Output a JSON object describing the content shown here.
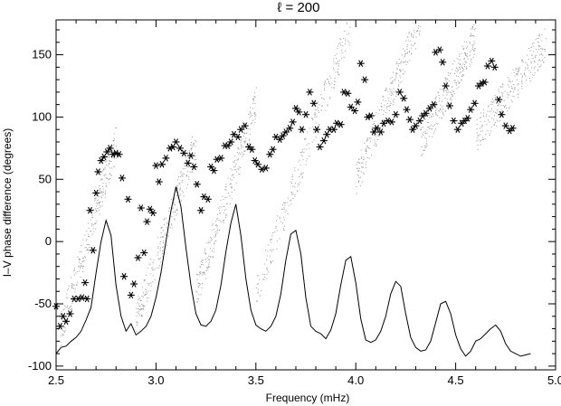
{
  "chart_data": {
    "type": "scatter",
    "title": "ℓ = 200",
    "xlabel": "Frequency (mHz)",
    "ylabel": "I–V phase difference (degrees)",
    "xlim": [
      2.5,
      5.0
    ],
    "ylim": [
      -103,
      178
    ],
    "x_ticks": [
      "2.5",
      "3.0",
      "3.5",
      "4.0",
      "4.5",
      "5.0"
    ],
    "y_ticks": [
      "-100",
      "-50",
      "0",
      "50",
      "100",
      "150"
    ],
    "grid": false,
    "legend": "none",
    "colors": {
      "asterisks": "#000000",
      "dots": "#9a9a9a",
      "line": "#000000"
    },
    "series": [
      {
        "style": "asterisk",
        "points": [
          [
            2.5,
            -52
          ],
          [
            2.52,
            -68
          ],
          [
            2.535,
            -60
          ],
          [
            2.55,
            -64
          ],
          [
            2.57,
            -58
          ],
          [
            2.59,
            -46
          ],
          [
            2.61,
            -46
          ],
          [
            2.63,
            -45
          ],
          [
            2.645,
            -33
          ],
          [
            2.655,
            -46
          ],
          [
            2.67,
            25
          ],
          [
            2.685,
            -7
          ],
          [
            2.7,
            39
          ],
          [
            2.71,
            56
          ],
          [
            2.725,
            65
          ],
          [
            2.74,
            68
          ],
          [
            2.755,
            72
          ],
          [
            2.77,
            75
          ],
          [
            2.785,
            70
          ],
          [
            2.8,
            71
          ],
          [
            2.815,
            70
          ],
          [
            2.83,
            51
          ],
          [
            2.84,
            -28
          ],
          [
            2.86,
            34
          ],
          [
            2.875,
            -43
          ],
          [
            2.89,
            -34
          ],
          [
            2.91,
            -13
          ],
          [
            2.925,
            27
          ],
          [
            2.94,
            -9
          ],
          [
            2.955,
            16
          ],
          [
            2.97,
            26
          ],
          [
            2.985,
            23
          ],
          [
            3.0,
            61
          ],
          [
            3.015,
            48
          ],
          [
            3.03,
            62
          ],
          [
            3.05,
            67
          ],
          [
            3.07,
            75
          ],
          [
            3.085,
            76
          ],
          [
            3.1,
            80
          ],
          [
            3.12,
            75
          ],
          [
            3.14,
            71
          ],
          [
            3.16,
            63
          ],
          [
            3.175,
            69
          ],
          [
            3.19,
            60
          ],
          [
            3.205,
            46
          ],
          [
            3.225,
            25
          ],
          [
            3.24,
            36
          ],
          [
            3.26,
            34
          ],
          [
            3.275,
            60
          ],
          [
            3.29,
            57
          ],
          [
            3.305,
            66
          ],
          [
            3.325,
            67
          ],
          [
            3.345,
            77
          ],
          [
            3.36,
            77
          ],
          [
            3.375,
            80
          ],
          [
            3.39,
            86
          ],
          [
            3.41,
            84
          ],
          [
            3.425,
            90
          ],
          [
            3.445,
            93
          ],
          [
            3.465,
            76
          ],
          [
            3.48,
            74
          ],
          [
            3.495,
            65
          ],
          [
            3.51,
            62
          ],
          [
            3.53,
            58
          ],
          [
            3.55,
            59
          ],
          [
            3.57,
            70
          ],
          [
            3.585,
            74
          ],
          [
            3.6,
            84
          ],
          [
            3.62,
            82
          ],
          [
            3.635,
            85
          ],
          [
            3.65,
            88
          ],
          [
            3.67,
            91
          ],
          [
            3.685,
            96
          ],
          [
            3.7,
            107
          ],
          [
            3.715,
            104
          ],
          [
            3.73,
            90
          ],
          [
            3.75,
            102
          ],
          [
            3.77,
            120
          ],
          [
            3.79,
            111
          ],
          [
            3.805,
            90
          ],
          [
            3.82,
            76
          ],
          [
            3.84,
            81
          ],
          [
            3.855,
            86
          ],
          [
            3.87,
            90
          ],
          [
            3.89,
            90
          ],
          [
            3.905,
            95
          ],
          [
            3.925,
            94
          ],
          [
            3.94,
            120
          ],
          [
            3.96,
            119
          ],
          [
            3.975,
            108
          ],
          [
            3.995,
            105
          ],
          [
            4.01,
            112
          ],
          [
            4.025,
            143
          ],
          [
            4.045,
            130
          ],
          [
            4.06,
            100
          ],
          [
            4.075,
            101
          ],
          [
            4.09,
            88
          ],
          [
            4.105,
            91
          ],
          [
            4.125,
            88
          ],
          [
            4.14,
            95
          ],
          [
            4.16,
            97
          ],
          [
            4.18,
            96
          ],
          [
            4.2,
            102
          ],
          [
            4.22,
            120
          ],
          [
            4.24,
            115
          ],
          [
            4.255,
            106
          ],
          [
            4.27,
            98
          ],
          [
            4.285,
            90
          ],
          [
            4.3,
            93
          ],
          [
            4.32,
            97
          ],
          [
            4.335,
            101
          ],
          [
            4.35,
            103
          ],
          [
            4.37,
            107
          ],
          [
            4.39,
            110
          ],
          [
            4.4,
            152
          ],
          [
            4.42,
            154
          ],
          [
            4.435,
            144
          ],
          [
            4.45,
            125
          ],
          [
            4.47,
            109
          ],
          [
            4.49,
            97
          ],
          [
            4.51,
            90
          ],
          [
            4.53,
            95
          ],
          [
            4.545,
            97
          ],
          [
            4.56,
            99
          ],
          [
            4.575,
            106
          ],
          [
            4.595,
            111
          ],
          [
            4.615,
            125
          ],
          [
            4.63,
            127
          ],
          [
            4.645,
            128
          ],
          [
            4.66,
            141
          ],
          [
            4.68,
            145
          ],
          [
            4.695,
            140
          ],
          [
            4.715,
            114
          ],
          [
            4.73,
            102
          ],
          [
            4.75,
            93
          ],
          [
            4.77,
            89
          ],
          [
            4.785,
            91
          ]
        ]
      },
      {
        "style": "line",
        "points": [
          [
            2.5,
            -90
          ],
          [
            2.525,
            -85
          ],
          [
            2.55,
            -84
          ],
          [
            2.575,
            -80
          ],
          [
            2.6,
            -77
          ],
          [
            2.625,
            -72
          ],
          [
            2.65,
            -63
          ],
          [
            2.675,
            -53
          ],
          [
            2.7,
            -25
          ],
          [
            2.725,
            0
          ],
          [
            2.75,
            17
          ],
          [
            2.775,
            5
          ],
          [
            2.8,
            -35
          ],
          [
            2.825,
            -60
          ],
          [
            2.85,
            -72
          ],
          [
            2.875,
            -66
          ],
          [
            2.9,
            -75
          ],
          [
            2.925,
            -72
          ],
          [
            2.95,
            -68
          ],
          [
            2.975,
            -60
          ],
          [
            3.0,
            -45
          ],
          [
            3.025,
            -25
          ],
          [
            3.05,
            0
          ],
          [
            3.075,
            25
          ],
          [
            3.1,
            44
          ],
          [
            3.125,
            28
          ],
          [
            3.15,
            -5
          ],
          [
            3.175,
            -35
          ],
          [
            3.2,
            -58
          ],
          [
            3.225,
            -67
          ],
          [
            3.25,
            -68
          ],
          [
            3.275,
            -64
          ],
          [
            3.3,
            -55
          ],
          [
            3.325,
            -35
          ],
          [
            3.35,
            -8
          ],
          [
            3.375,
            15
          ],
          [
            3.4,
            30
          ],
          [
            3.425,
            5
          ],
          [
            3.45,
            -30
          ],
          [
            3.475,
            -55
          ],
          [
            3.5,
            -67
          ],
          [
            3.525,
            -70
          ],
          [
            3.55,
            -72
          ],
          [
            3.575,
            -68
          ],
          [
            3.6,
            -60
          ],
          [
            3.625,
            -42
          ],
          [
            3.65,
            -15
          ],
          [
            3.675,
            6
          ],
          [
            3.7,
            9
          ],
          [
            3.725,
            -10
          ],
          [
            3.75,
            -45
          ],
          [
            3.775,
            -68
          ],
          [
            3.8,
            -72
          ],
          [
            3.825,
            -74
          ],
          [
            3.85,
            -78
          ],
          [
            3.875,
            -71
          ],
          [
            3.9,
            -58
          ],
          [
            3.925,
            -35
          ],
          [
            3.95,
            -15
          ],
          [
            3.975,
            -12
          ],
          [
            4.0,
            -33
          ],
          [
            4.025,
            -62
          ],
          [
            4.05,
            -79
          ],
          [
            4.075,
            -81
          ],
          [
            4.1,
            -79
          ],
          [
            4.125,
            -72
          ],
          [
            4.15,
            -60
          ],
          [
            4.175,
            -42
          ],
          [
            4.2,
            -32
          ],
          [
            4.225,
            -36
          ],
          [
            4.25,
            -58
          ],
          [
            4.275,
            -77
          ],
          [
            4.3,
            -85
          ],
          [
            4.325,
            -88
          ],
          [
            4.35,
            -87
          ],
          [
            4.375,
            -80
          ],
          [
            4.4,
            -65
          ],
          [
            4.425,
            -50
          ],
          [
            4.45,
            -48
          ],
          [
            4.475,
            -58
          ],
          [
            4.5,
            -75
          ],
          [
            4.525,
            -86
          ],
          [
            4.55,
            -92
          ],
          [
            4.575,
            -88
          ],
          [
            4.6,
            -80
          ],
          [
            4.625,
            -78
          ],
          [
            4.65,
            -74
          ],
          [
            4.675,
            -70
          ],
          [
            4.7,
            -67
          ],
          [
            4.725,
            -72
          ],
          [
            4.75,
            -82
          ],
          [
            4.775,
            -88
          ],
          [
            4.8,
            -90
          ],
          [
            4.825,
            -92
          ],
          [
            4.85,
            -91
          ],
          [
            4.875,
            -90
          ]
        ]
      }
    ]
  }
}
